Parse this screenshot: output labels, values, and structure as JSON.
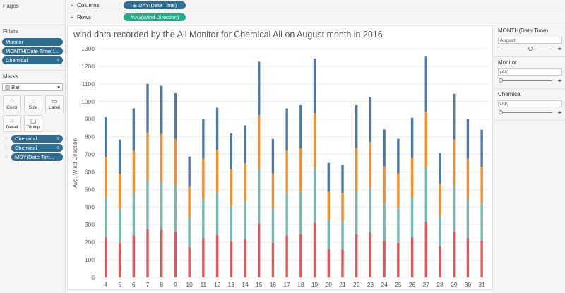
{
  "pages": {
    "title": "Pages"
  },
  "shelves": {
    "columns": {
      "label": "Columns",
      "icon": "columns-icon",
      "pill": "⊞ DAY(Date Time)"
    },
    "rows": {
      "label": "Rows",
      "icon": "rows-icon",
      "pill": "AVG(Wind Direction)"
    }
  },
  "filters": {
    "title": "Filters",
    "items": [
      "Monitor",
      "MONTH(Date Time):...",
      "Chemical"
    ]
  },
  "marks": {
    "title": "Marks",
    "type": "Bar",
    "buttons": {
      "color": "Color",
      "size": "Size",
      "label": "Label",
      "detail": "Detail",
      "tooltip": "Tooltip"
    },
    "fields": [
      "Chemical",
      "Chemical",
      "MDY(Date Tim..."
    ]
  },
  "right": {
    "month": {
      "title": "MONTH(Date Time)",
      "value": "August",
      "level": 0.57
    },
    "monitor": {
      "title": "Monitor",
      "value": "(All)",
      "level": 0
    },
    "chemical": {
      "title": "Chemical",
      "value": "(All)",
      "level": 0
    }
  },
  "colors": {
    "accent": "#2f6d8e",
    "green_pill": "#1fb08a",
    "series": [
      "#e15759",
      "#76b7b2",
      "#f28e2b",
      "#4e79a7"
    ]
  },
  "chart_data": {
    "type": "bar",
    "stacked": true,
    "title": "wind  data recorded by the All Monitor for Chemical  All on August month in 2016",
    "xlabel": "",
    "ylabel": "Avg. Wind Direction",
    "ylim": [
      0,
      1300
    ],
    "yticks": [
      0,
      100,
      200,
      300,
      400,
      500,
      600,
      700,
      800,
      900,
      1000,
      1100,
      1200,
      1300
    ],
    "grid": "horizontal",
    "categories": [
      "4",
      "5",
      "6",
      "7",
      "8",
      "9",
      "10",
      "11",
      "12",
      "13",
      "14",
      "15",
      "16",
      "17",
      "18",
      "19",
      "20",
      "21",
      "22",
      "23",
      "24",
      "25",
      "26",
      "27",
      "28",
      "29",
      "30",
      "31"
    ],
    "series": [
      {
        "color": "#e15759",
        "values": [
          228,
          196,
          240,
          275,
          272,
          262,
          172,
          225,
          242,
          205,
          217,
          308,
          197,
          240,
          245,
          312,
          163,
          160,
          245,
          257,
          210,
          197,
          227,
          315,
          177,
          262,
          225,
          210
        ]
      },
      {
        "color": "#76b7b2",
        "values": [
          229,
          196,
          240,
          275,
          271,
          262,
          171,
          225,
          241,
          204,
          216,
          307,
          197,
          241,
          244,
          311,
          162,
          160,
          245,
          256,
          211,
          198,
          227,
          313,
          177,
          261,
          225,
          210
        ]
      },
      {
        "color": "#f28e2b",
        "values": [
          229,
          197,
          241,
          274,
          273,
          263,
          172,
          226,
          242,
          205,
          217,
          307,
          197,
          241,
          245,
          311,
          163,
          160,
          245,
          257,
          210,
          197,
          226,
          314,
          178,
          261,
          225,
          210
        ]
      },
      {
        "color": "#4e79a7",
        "values": [
          224,
          194,
          240,
          276,
          273,
          260,
          172,
          226,
          240,
          205,
          215,
          304,
          196,
          239,
          245,
          310,
          163,
          160,
          244,
          255,
          210,
          196,
          228,
          313,
          177,
          260,
          225,
          210
        ]
      }
    ]
  }
}
